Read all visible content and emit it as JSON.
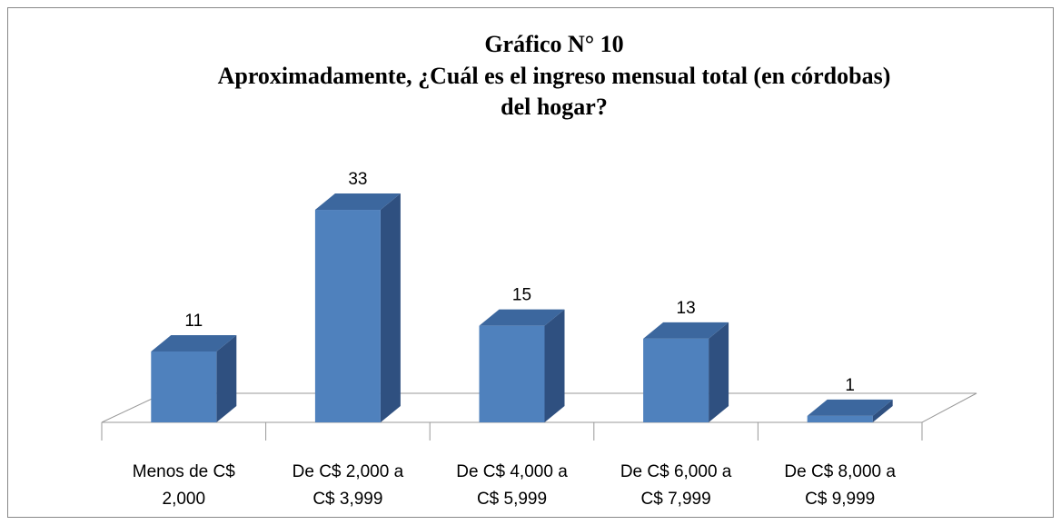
{
  "chart_data": {
    "type": "bar",
    "title": [
      "Gráfico N° 10",
      "Aproximadamente, ¿Cuál es el ingreso mensual total (en córdobas)",
      "del hogar?"
    ],
    "categories": [
      "Menos de C$ 2,000",
      "De C$ 2,000 a C$ 3,999",
      "De C$ 4,000 a C$ 5,999",
      "De C$ 6,000 a C$ 7,999",
      "De C$ 8,000 a C$ 9,999"
    ],
    "values": [
      11,
      33,
      15,
      13,
      1
    ],
    "color": "#4f81bd"
  }
}
